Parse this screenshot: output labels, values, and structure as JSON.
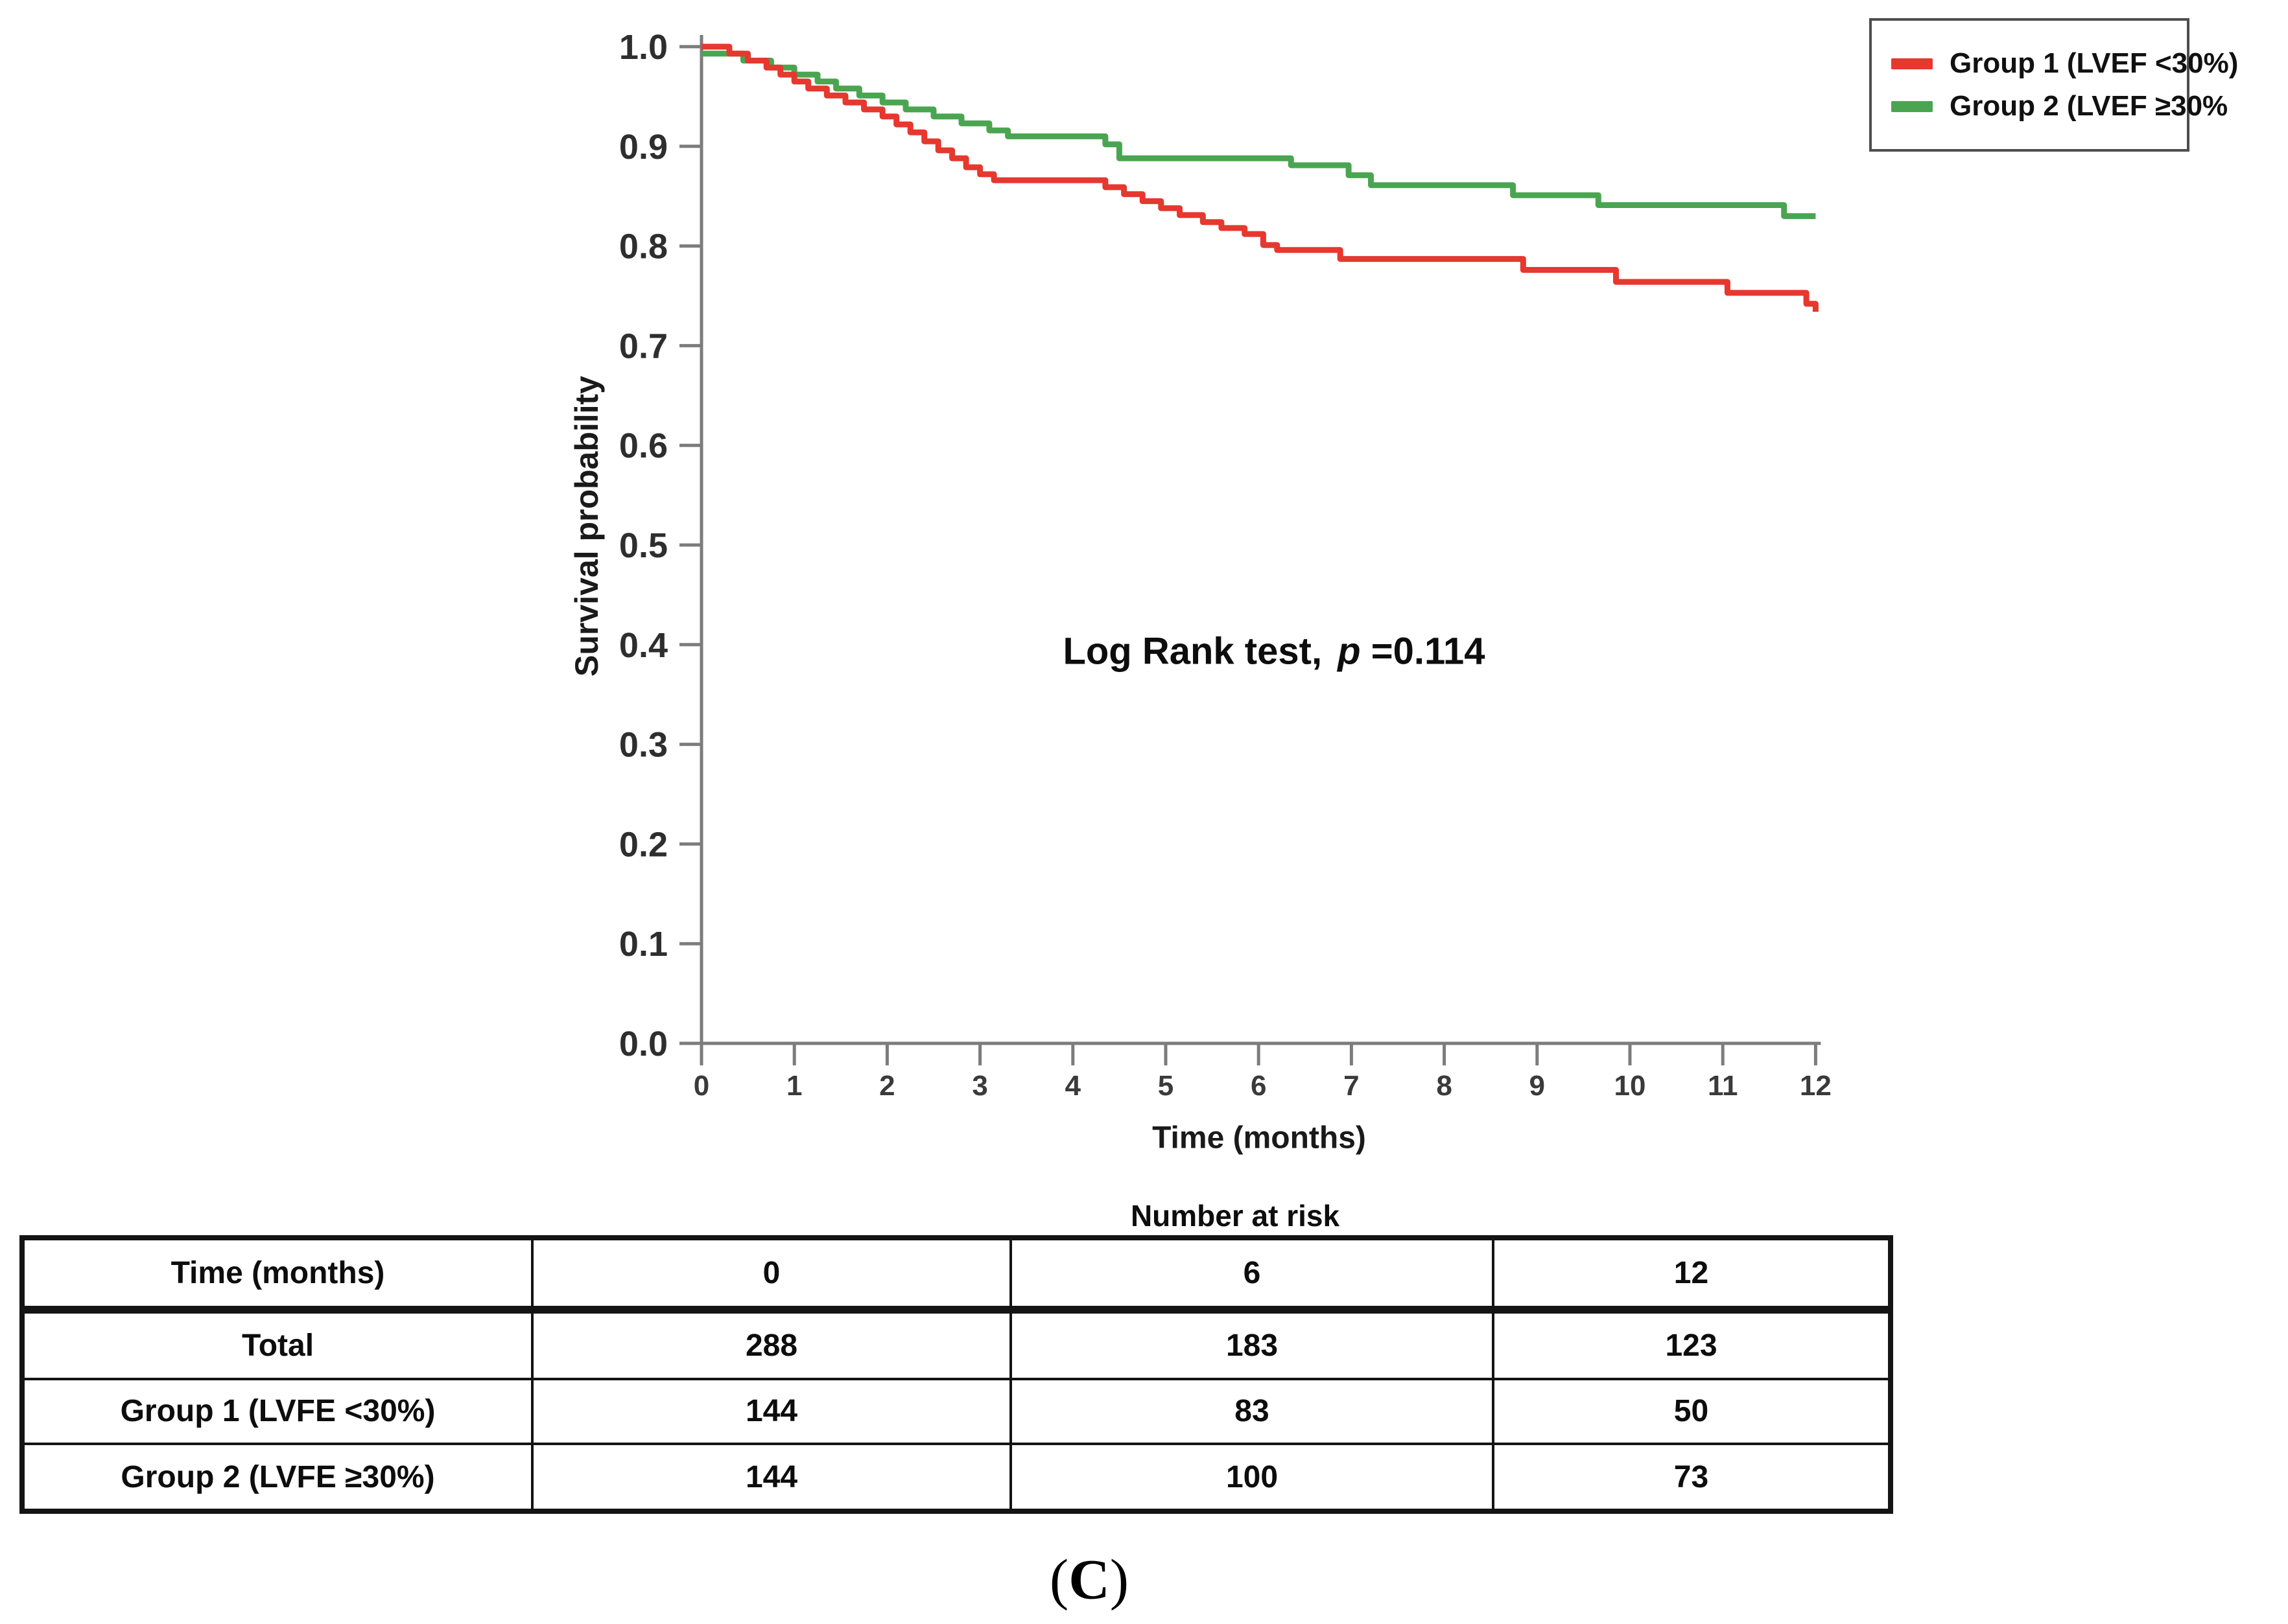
{
  "window": {
    "background": "#ffffff"
  },
  "chart_data": {
    "type": "line",
    "subtype": "kaplan_meier_step",
    "title": "",
    "xlabel": "Time (months)",
    "ylabel": "Survival probability",
    "xlim": [
      0,
      12
    ],
    "ylim": [
      0.0,
      1.0
    ],
    "x_ticks": [
      "0",
      "1",
      "2",
      "3",
      "4",
      "5",
      "6",
      "7",
      "8",
      "9",
      "10",
      "11",
      "12"
    ],
    "y_ticks": [
      "0.0",
      "0.1",
      "0.2",
      "0.3",
      "0.4",
      "0.5",
      "0.6",
      "0.7",
      "0.8",
      "0.9",
      "1.0"
    ],
    "grid": false,
    "axis_color": "#7c7c7c",
    "tick_label_color": "#2e2e2e",
    "annotation": {
      "prefix": "Log Rank test, ",
      "p_symbol": "p",
      "suffix": " =0.114",
      "full_text": "Log Rank test, p =0.114"
    },
    "legend": {
      "position": "outside-top-right",
      "entries": [
        {
          "label": "Group 1 (LVEF <30%)",
          "color": "#e5382f"
        },
        {
          "label": "Group 2 (LVEF ≥30%",
          "color": "#4aa551"
        }
      ]
    },
    "series": [
      {
        "name": "Group 1 (LVEF <30%)",
        "color": "#e5382f",
        "end_time": 12,
        "steps": [
          [
            0,
            1.0
          ],
          [
            0.3,
            0.993
          ],
          [
            0.5,
            0.986
          ],
          [
            0.7,
            0.979
          ],
          [
            0.85,
            0.972
          ],
          [
            1.0,
            0.965
          ],
          [
            1.15,
            0.958
          ],
          [
            1.35,
            0.951
          ],
          [
            1.55,
            0.944
          ],
          [
            1.75,
            0.937
          ],
          [
            1.95,
            0.93
          ],
          [
            2.1,
            0.922
          ],
          [
            2.25,
            0.914
          ],
          [
            2.4,
            0.905
          ],
          [
            2.55,
            0.896
          ],
          [
            2.7,
            0.888
          ],
          [
            2.85,
            0.879
          ],
          [
            3.0,
            0.872
          ],
          [
            3.15,
            0.866
          ],
          [
            4.35,
            0.859
          ],
          [
            4.55,
            0.852
          ],
          [
            4.75,
            0.845
          ],
          [
            4.95,
            0.838
          ],
          [
            5.15,
            0.831
          ],
          [
            5.4,
            0.824
          ],
          [
            5.6,
            0.818
          ],
          [
            5.85,
            0.812
          ],
          [
            6.05,
            0.801
          ],
          [
            6.2,
            0.796
          ],
          [
            6.88,
            0.787
          ],
          [
            8.85,
            0.776
          ],
          [
            9.85,
            0.764
          ],
          [
            11.05,
            0.753
          ],
          [
            11.9,
            0.742
          ],
          [
            12,
            0.734
          ]
        ]
      },
      {
        "name": "Group 2 (LVEF ≥30%",
        "color": "#4aa551",
        "end_time": 12,
        "steps": [
          [
            0,
            0.993
          ],
          [
            0.45,
            0.986
          ],
          [
            0.75,
            0.979
          ],
          [
            1.0,
            0.972
          ],
          [
            1.25,
            0.965
          ],
          [
            1.45,
            0.958
          ],
          [
            1.7,
            0.951
          ],
          [
            1.95,
            0.944
          ],
          [
            2.2,
            0.937
          ],
          [
            2.5,
            0.93
          ],
          [
            2.8,
            0.923
          ],
          [
            3.1,
            0.916
          ],
          [
            3.3,
            0.91
          ],
          [
            4.35,
            0.902
          ],
          [
            4.5,
            0.888
          ],
          [
            6.35,
            0.881
          ],
          [
            6.97,
            0.871
          ],
          [
            7.21,
            0.861
          ],
          [
            8.74,
            0.851
          ],
          [
            9.66,
            0.841
          ],
          [
            11.66,
            0.83
          ]
        ]
      }
    ]
  },
  "risk_table": {
    "title": "Number at risk",
    "header_row": {
      "label": "Time (months)",
      "values": [
        "0",
        "6",
        "12"
      ]
    },
    "rows": [
      {
        "label": "Total",
        "values": [
          "288",
          "183",
          "123"
        ]
      },
      {
        "label": "Group 1 (LVFE <30%)",
        "values": [
          "144",
          "83",
          "50"
        ]
      },
      {
        "label": "Group 2 (LVFE ≥30%)",
        "values": [
          "144",
          "100",
          "73"
        ]
      }
    ]
  },
  "caption": {
    "open": "(",
    "letter": "C",
    "close": ")"
  }
}
